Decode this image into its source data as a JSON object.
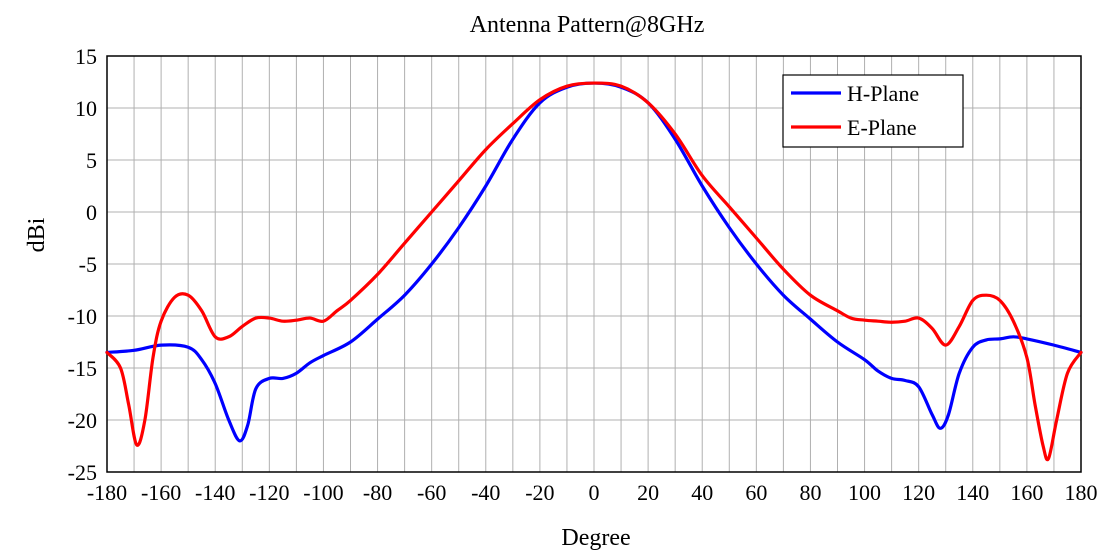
{
  "chart_data": {
    "type": "line",
    "title": "Antenna Pattern@8GHz",
    "xlabel": "Degree",
    "ylabel": "dBi",
    "xlim": [
      -180,
      180
    ],
    "ylim": [
      -25,
      15
    ],
    "xticks": [
      -180,
      -160,
      -140,
      -120,
      -100,
      -80,
      -60,
      -40,
      -20,
      0,
      20,
      40,
      60,
      80,
      100,
      120,
      140,
      160,
      180
    ],
    "yticks": [
      15,
      10,
      5,
      0,
      -5,
      -10,
      -15,
      -20,
      -25
    ],
    "minor_x_step": 10,
    "grid": true,
    "legend_position": "top-right",
    "series": [
      {
        "name": "H-Plane",
        "color": "#0000ff",
        "x": [
          -180,
          -170,
          -160,
          -150,
          -145,
          -140,
          -135,
          -131,
          -128,
          -125,
          -120,
          -115,
          -110,
          -105,
          -100,
          -90,
          -80,
          -70,
          -60,
          -50,
          -40,
          -30,
          -20,
          -10,
          0,
          10,
          20,
          30,
          40,
          50,
          60,
          70,
          80,
          90,
          100,
          105,
          110,
          115,
          120,
          125,
          128,
          131,
          135,
          140,
          145,
          150,
          155,
          160,
          170,
          180
        ],
        "y": [
          -13.5,
          -13.3,
          -12.8,
          -13.0,
          -14.2,
          -16.5,
          -20.0,
          -22.0,
          -20.5,
          -17.0,
          -16.0,
          -16.0,
          -15.5,
          -14.5,
          -13.8,
          -12.5,
          -10.3,
          -8.0,
          -5.0,
          -1.5,
          2.5,
          7.0,
          10.5,
          12.0,
          12.4,
          12.0,
          10.5,
          7.0,
          2.5,
          -1.5,
          -5.0,
          -8.0,
          -10.3,
          -12.5,
          -14.2,
          -15.3,
          -16.0,
          -16.2,
          -16.8,
          -19.5,
          -20.8,
          -19.5,
          -15.5,
          -13.0,
          -12.3,
          -12.2,
          -12.0,
          -12.2,
          -12.8,
          -13.5
        ]
      },
      {
        "name": "E-Plane",
        "color": "#ff0000",
        "x": [
          -180,
          -175,
          -172,
          -169,
          -166,
          -163,
          -160,
          -155,
          -150,
          -145,
          -140,
          -135,
          -130,
          -125,
          -120,
          -115,
          -110,
          -105,
          -100,
          -95,
          -90,
          -80,
          -70,
          -60,
          -50,
          -40,
          -30,
          -20,
          -10,
          0,
          10,
          20,
          30,
          40,
          50,
          60,
          70,
          80,
          90,
          95,
          100,
          105,
          110,
          115,
          120,
          125,
          130,
          135,
          140,
          145,
          150,
          155,
          160,
          163,
          166,
          168,
          171,
          175,
          180
        ],
        "y": [
          -13.5,
          -15.0,
          -18.5,
          -22.4,
          -20.0,
          -14.0,
          -10.5,
          -8.2,
          -8.0,
          -9.5,
          -12.0,
          -12.0,
          -11.0,
          -10.2,
          -10.2,
          -10.5,
          -10.4,
          -10.2,
          -10.5,
          -9.5,
          -8.5,
          -6.0,
          -3.0,
          0.0,
          3.0,
          6.0,
          8.5,
          10.8,
          12.1,
          12.4,
          12.1,
          10.5,
          7.5,
          3.5,
          0.5,
          -2.5,
          -5.5,
          -8.0,
          -9.5,
          -10.2,
          -10.4,
          -10.5,
          -10.6,
          -10.5,
          -10.2,
          -11.2,
          -12.8,
          -11.0,
          -8.5,
          -8.0,
          -8.5,
          -10.5,
          -14.0,
          -18.5,
          -22.5,
          -23.7,
          -20.0,
          -15.5,
          -13.5
        ]
      }
    ]
  }
}
